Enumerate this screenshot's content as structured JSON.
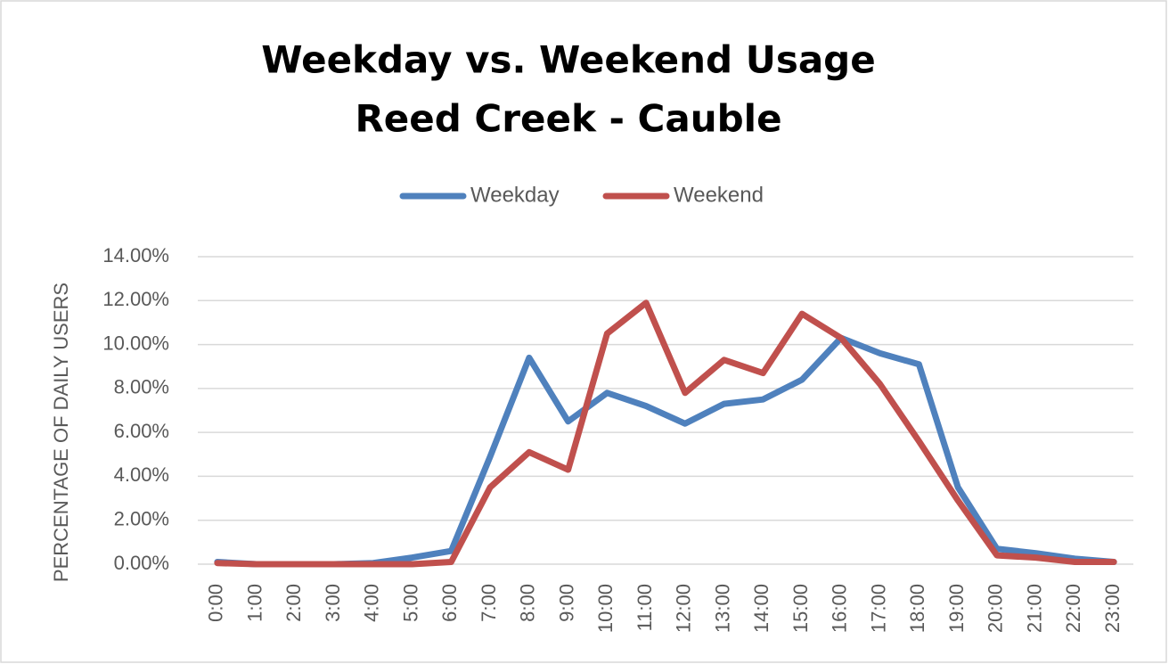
{
  "chart_data": {
    "type": "line",
    "title": "Weekday vs. Weekend Usage",
    "subtitle": "Reed Creek - Cauble",
    "y_label": "PERCENTAGE OF DAILY USERS",
    "categories": [
      "0:00",
      "1:00",
      "2:00",
      "3:00",
      "4:00",
      "5:00",
      "6:00",
      "7:00",
      "8:00",
      "9:00",
      "10:00",
      "11:00",
      "12:00",
      "13:00",
      "14:00",
      "15:00",
      "16:00",
      "17:00",
      "18:00",
      "19:00",
      "20:00",
      "21:00",
      "22:00",
      "23:00"
    ],
    "series": [
      {
        "name": "Weekday",
        "color": "#4f81bd",
        "values": [
          0.1,
          0,
          0,
          0,
          0.05,
          0.3,
          0.6,
          4.9,
          9.4,
          6.5,
          7.8,
          7.2,
          6.4,
          7.3,
          7.5,
          8.4,
          10.3,
          9.6,
          9.1,
          3.5,
          0.7,
          0.5,
          0.25,
          0.1
        ]
      },
      {
        "name": "Weekend",
        "color": "#c0504d",
        "values": [
          0.05,
          0,
          0,
          0,
          0,
          0,
          0.1,
          3.5,
          5.1,
          4.3,
          10.5,
          11.9,
          7.8,
          9.3,
          8.7,
          11.4,
          10.3,
          8.2,
          5.6,
          2.9,
          0.4,
          0.3,
          0.1,
          0.1
        ]
      }
    ],
    "ylim": [
      0,
      14
    ],
    "yticks": [
      {
        "value": 0,
        "label": "0.00%"
      },
      {
        "value": 2,
        "label": "2.00%"
      },
      {
        "value": 4,
        "label": "4.00%"
      },
      {
        "value": 6,
        "label": "6.00%"
      },
      {
        "value": 8,
        "label": "8.00%"
      },
      {
        "value": 10,
        "label": "10.00%"
      },
      {
        "value": 12,
        "label": "12.00%"
      },
      {
        "value": 14,
        "label": "14.00%"
      }
    ],
    "grid": true,
    "legend": "top"
  }
}
